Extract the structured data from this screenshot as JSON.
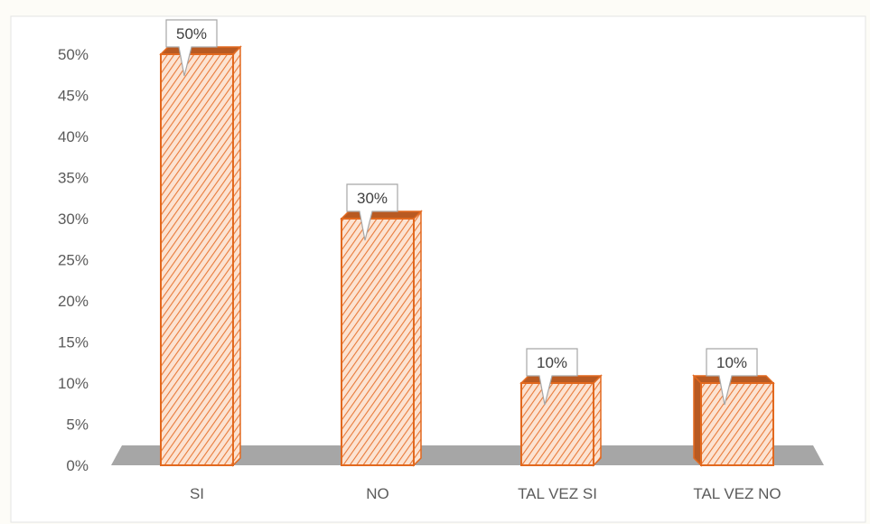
{
  "chart_data": {
    "type": "bar",
    "categories": [
      "SI",
      "NO",
      "TAL VEZ SI",
      "TAL VEZ NO"
    ],
    "values": [
      50,
      30,
      10,
      10
    ],
    "data_labels": [
      "50%",
      "30%",
      "10%",
      "10%"
    ],
    "title": "",
    "xlabel": "",
    "ylabel": "",
    "ylim": [
      0,
      50
    ],
    "y_ticks": [
      0,
      5,
      10,
      15,
      20,
      25,
      30,
      35,
      40,
      45,
      50
    ],
    "y_tick_labels": [
      "0%",
      "5%",
      "10%",
      "15%",
      "20%",
      "25%",
      "30%",
      "35%",
      "40%",
      "45%",
      "50%"
    ],
    "grid": false,
    "legend": "none",
    "style": "3d-column-hatched",
    "colors": {
      "bar_fill": "#fce3d2",
      "bar_hatch": "#e87a3a",
      "bar_border": "#e2691f",
      "bar_side": "#b85a22",
      "floor": "#a6a6a6",
      "label_box_border": "#a6a6a6",
      "label_box_fill": "#ffffff",
      "chart_background": "#ffffff",
      "page_background": "#fdfcf7"
    }
  }
}
